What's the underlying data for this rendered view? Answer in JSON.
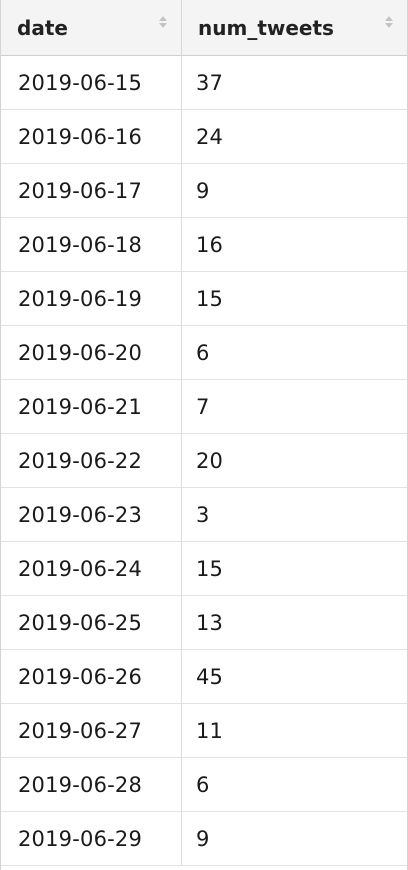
{
  "table": {
    "columns": [
      {
        "label": "date"
      },
      {
        "label": "num_tweets"
      }
    ],
    "rows": [
      {
        "date": "2019-06-15",
        "num_tweets": "37"
      },
      {
        "date": "2019-06-16",
        "num_tweets": "24"
      },
      {
        "date": "2019-06-17",
        "num_tweets": "9"
      },
      {
        "date": "2019-06-18",
        "num_tweets": "16"
      },
      {
        "date": "2019-06-19",
        "num_tweets": "15"
      },
      {
        "date": "2019-06-20",
        "num_tweets": "6"
      },
      {
        "date": "2019-06-21",
        "num_tweets": "7"
      },
      {
        "date": "2019-06-22",
        "num_tweets": "20"
      },
      {
        "date": "2019-06-23",
        "num_tweets": "3"
      },
      {
        "date": "2019-06-24",
        "num_tweets": "15"
      },
      {
        "date": "2019-06-25",
        "num_tweets": "13"
      },
      {
        "date": "2019-06-26",
        "num_tweets": "45"
      },
      {
        "date": "2019-06-27",
        "num_tweets": "11"
      },
      {
        "date": "2019-06-28",
        "num_tweets": "6"
      },
      {
        "date": "2019-06-29",
        "num_tweets": "9"
      }
    ]
  },
  "icons": {
    "sort": "sort-icon"
  },
  "colors": {
    "header_bg": "#f4f4f4",
    "border": "#d4d4d4",
    "text": "#1a1a1a"
  }
}
